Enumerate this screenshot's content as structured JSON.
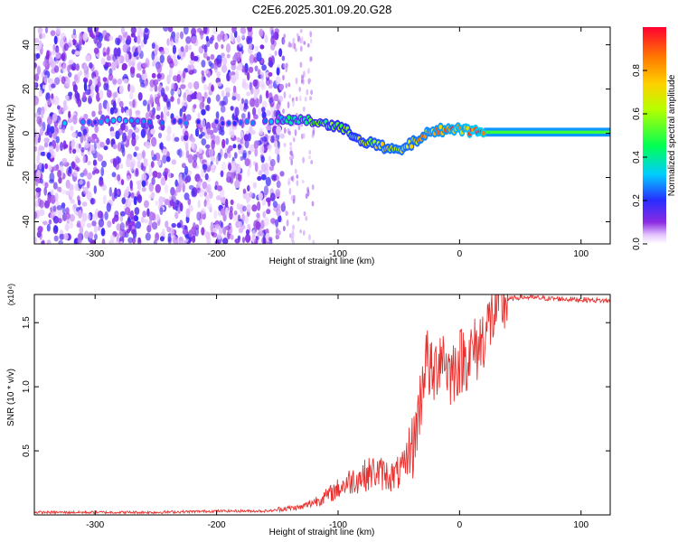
{
  "title": "C2E6.2025.301.09.20.G28",
  "colors": {
    "snr_line": "#e8312f",
    "noise_dense": "#6a0fe0",
    "noise_light": "#d8b8f8",
    "axis": "#000000"
  },
  "chart_data": [
    {
      "id": "spectrogram",
      "type": "heatmap",
      "title": "C2E6.2025.301.09.20.G28",
      "xlabel": "Height of straight line (km)",
      "ylabel": "Frequency (Hz)",
      "xlim": [
        -350,
        124
      ],
      "ylim": [
        -50,
        48
      ],
      "xticks": [
        -300,
        -200,
        -100,
        0,
        100
      ],
      "yticks": [
        -40,
        -20,
        0,
        20,
        40
      ],
      "xtick_labels": [
        "-300",
        "-200",
        "-100",
        "0",
        "100"
      ],
      "ytick_labels": [
        "-40",
        "-20",
        "0",
        "20",
        "40"
      ],
      "noise_region_x": [
        -350,
        -145
      ],
      "sparse_noise_x": [
        -145,
        -120
      ],
      "signal_track": [
        {
          "x": -345,
          "f": 5,
          "a": 0.28
        },
        {
          "x": -320,
          "f": 5,
          "a": 0.3
        },
        {
          "x": -300,
          "f": 5,
          "a": 0.22
        },
        {
          "x": -280,
          "f": 6,
          "a": 0.35
        },
        {
          "x": -260,
          "f": 5,
          "a": 0.3
        },
        {
          "x": -200,
          "f": 5,
          "a": 0.2
        },
        {
          "x": -170,
          "f": 5,
          "a": 0.25
        },
        {
          "x": -145,
          "f": 6,
          "a": 0.38
        },
        {
          "x": -130,
          "f": 6,
          "a": 0.45
        },
        {
          "x": -115,
          "f": 5,
          "a": 0.52
        },
        {
          "x": -100,
          "f": 3,
          "a": 0.55
        },
        {
          "x": -90,
          "f": 0,
          "a": 0.58
        },
        {
          "x": -80,
          "f": -3,
          "a": 0.62
        },
        {
          "x": -70,
          "f": -5,
          "a": 0.66
        },
        {
          "x": -60,
          "f": -7,
          "a": 0.7
        },
        {
          "x": -50,
          "f": -8,
          "a": 0.72
        },
        {
          "x": -40,
          "f": -5,
          "a": 0.7
        },
        {
          "x": -30,
          "f": -1,
          "a": 0.75
        },
        {
          "x": -20,
          "f": 1,
          "a": 0.8
        },
        {
          "x": -10,
          "f": 2,
          "a": 0.82
        },
        {
          "x": 0,
          "f": 2,
          "a": 0.86
        },
        {
          "x": 10,
          "f": 1,
          "a": 0.9
        },
        {
          "x": 20,
          "f": 1,
          "a": 0.95
        },
        {
          "x": 50,
          "f": 0.5,
          "a": 0.5
        },
        {
          "x": 80,
          "f": 0.5,
          "a": 0.48
        },
        {
          "x": 124,
          "f": 0.5,
          "a": 0.46
        }
      ],
      "colorbar": {
        "label": "Normalized spectral amplitude",
        "range": [
          0,
          1
        ],
        "ticks": [
          0.0,
          0.2,
          0.4,
          0.6,
          0.8
        ],
        "tick_labels": [
          "0.0",
          "0.2",
          "0.4",
          "0.6",
          "0.8"
        ]
      }
    },
    {
      "id": "snr",
      "type": "line",
      "xlabel": "Height of straight line (km)",
      "ylabel": "SNR (10 * v/v)",
      "multiplier": "(x10⁴)",
      "xlim": [
        -350,
        124
      ],
      "ylim": [
        0,
        1.72
      ],
      "xticks": [
        -300,
        -200,
        -100,
        0,
        100
      ],
      "yticks": [
        0.5,
        1.0,
        1.5
      ],
      "xtick_labels": [
        "-300",
        "-200",
        "-100",
        "0",
        "100"
      ],
      "ytick_labels": [
        "0.5",
        "1.0",
        "1.5"
      ],
      "series": [
        {
          "name": "SNR",
          "x": [
            -350,
            -300,
            -250,
            -200,
            -160,
            -130,
            -110,
            -90,
            -70,
            -55,
            -45,
            -38,
            -32,
            -28,
            -22,
            -15,
            -8,
            0,
            8,
            15,
            22,
            30,
            40,
            50,
            70,
            100,
            124
          ],
          "y": [
            0.02,
            0.02,
            0.02,
            0.03,
            0.03,
            0.05,
            0.12,
            0.22,
            0.28,
            0.25,
            0.3,
            0.55,
            0.9,
            1.25,
            1.05,
            1.3,
            1.1,
            1.2,
            1.25,
            1.3,
            1.45,
            1.6,
            1.68,
            1.7,
            1.69,
            1.68,
            1.67
          ]
        }
      ]
    }
  ]
}
